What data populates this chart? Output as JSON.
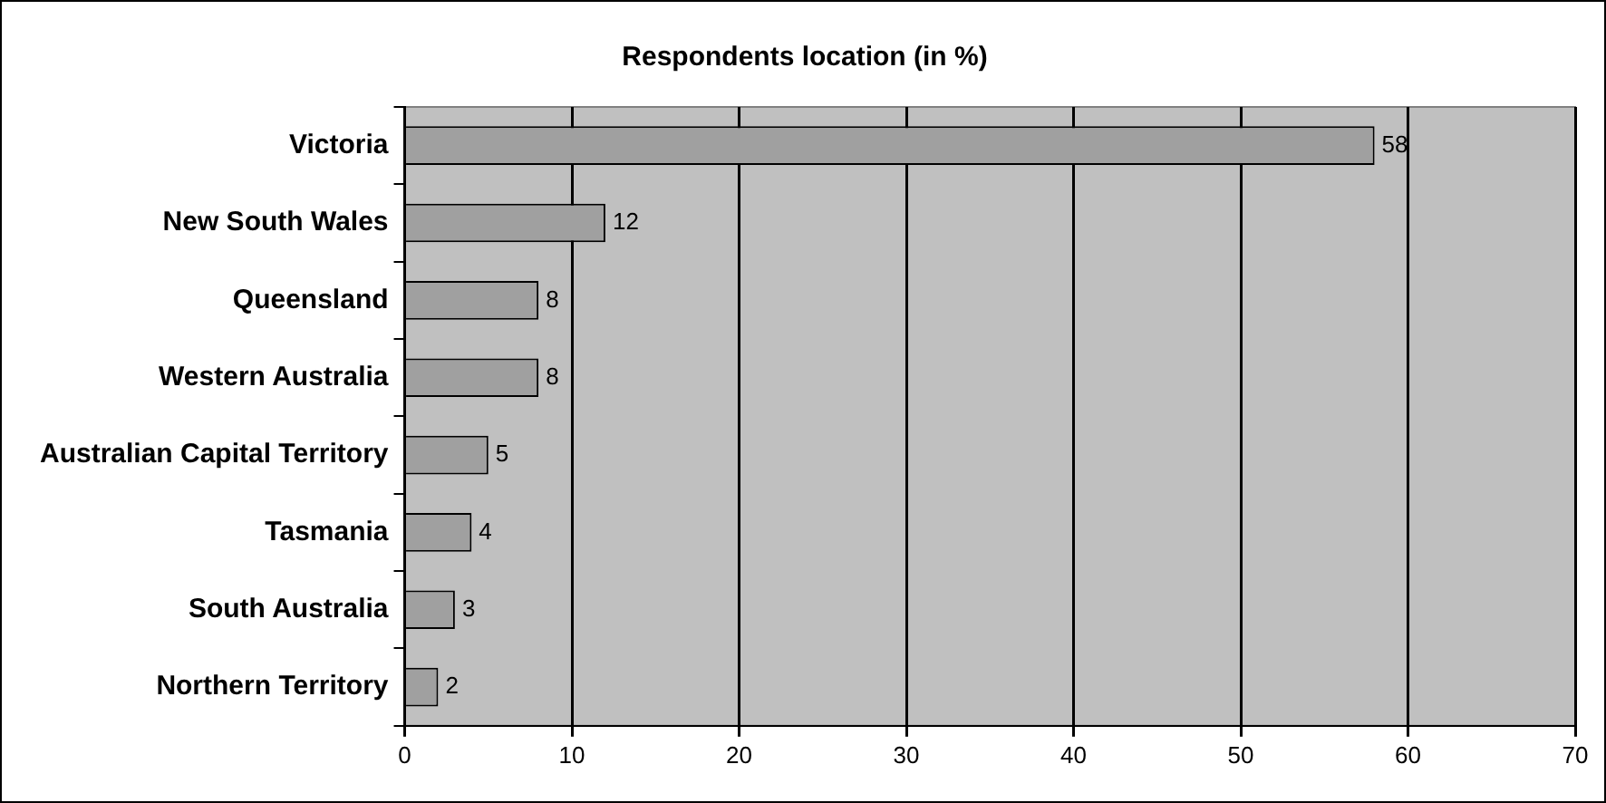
{
  "chart_data": {
    "type": "bar",
    "orientation": "horizontal",
    "title": "Respondents location (in %)",
    "categories": [
      "Victoria",
      "New South Wales",
      "Queensland",
      "Western Australia",
      "Australian Capital Territory",
      "Tasmania",
      "South Australia",
      "Northern Territory"
    ],
    "values": [
      58,
      12,
      8,
      8,
      5,
      4,
      3,
      2
    ],
    "color": "#a0a0a0",
    "xlim": [
      0,
      70
    ],
    "xticks": [
      0,
      10,
      20,
      30,
      40,
      50,
      60,
      70
    ],
    "grid": "x",
    "legend": false,
    "data_labels": true
  }
}
